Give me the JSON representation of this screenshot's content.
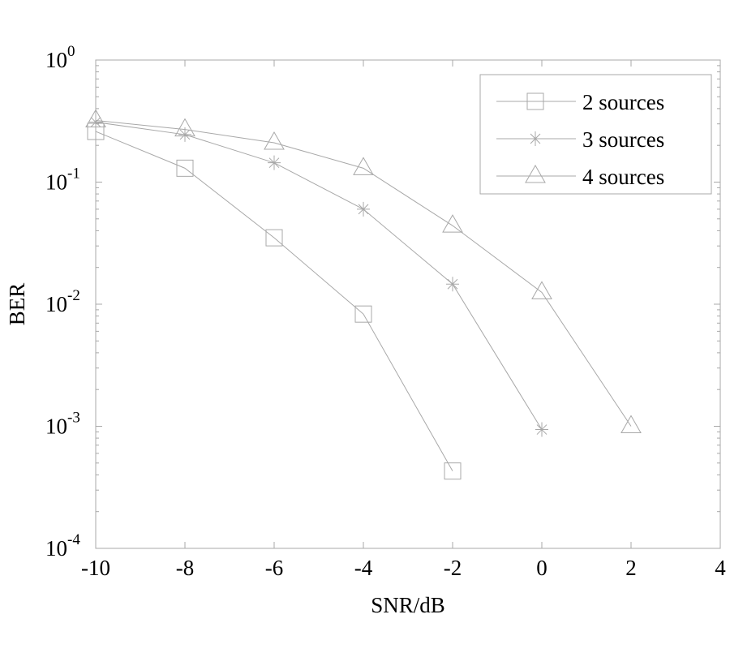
{
  "chart_data": {
    "type": "line",
    "title": "",
    "xlabel": "SNR/dB",
    "ylabel": "BER",
    "xlim": [
      -10,
      4
    ],
    "ylim": [
      0.0001,
      1
    ],
    "yscale": "log",
    "grid": false,
    "legend_position": "top-right",
    "x_ticks": [
      "-10",
      "-8",
      "-6",
      "-4",
      "-2",
      "0",
      "2",
      "4"
    ],
    "y_ticks": [
      {
        "base": "10",
        "exp": "0"
      },
      {
        "base": "10",
        "exp": "-1"
      },
      {
        "base": "10",
        "exp": "-2"
      },
      {
        "base": "10",
        "exp": "-3"
      },
      {
        "base": "10",
        "exp": "-4"
      }
    ],
    "line_color": "#a8a8a8",
    "series": [
      {
        "name": "2 sources",
        "marker": "square",
        "x": [
          -10,
          -8,
          -6,
          -4,
          -2
        ],
        "y": [
          0.26,
          0.13,
          0.035,
          0.0083,
          0.00043
        ]
      },
      {
        "name": "3 sources",
        "marker": "asterisk",
        "x": [
          -10,
          -8,
          -6,
          -4,
          -2,
          0
        ],
        "y": [
          0.31,
          0.245,
          0.144,
          0.06,
          0.0146,
          0.00094
        ]
      },
      {
        "name": "4 sources",
        "marker": "triangle",
        "x": [
          -10,
          -8,
          -6,
          -4,
          -2,
          0,
          2
        ],
        "y": [
          0.32,
          0.27,
          0.21,
          0.13,
          0.044,
          0.0125,
          0.001
        ]
      }
    ]
  }
}
